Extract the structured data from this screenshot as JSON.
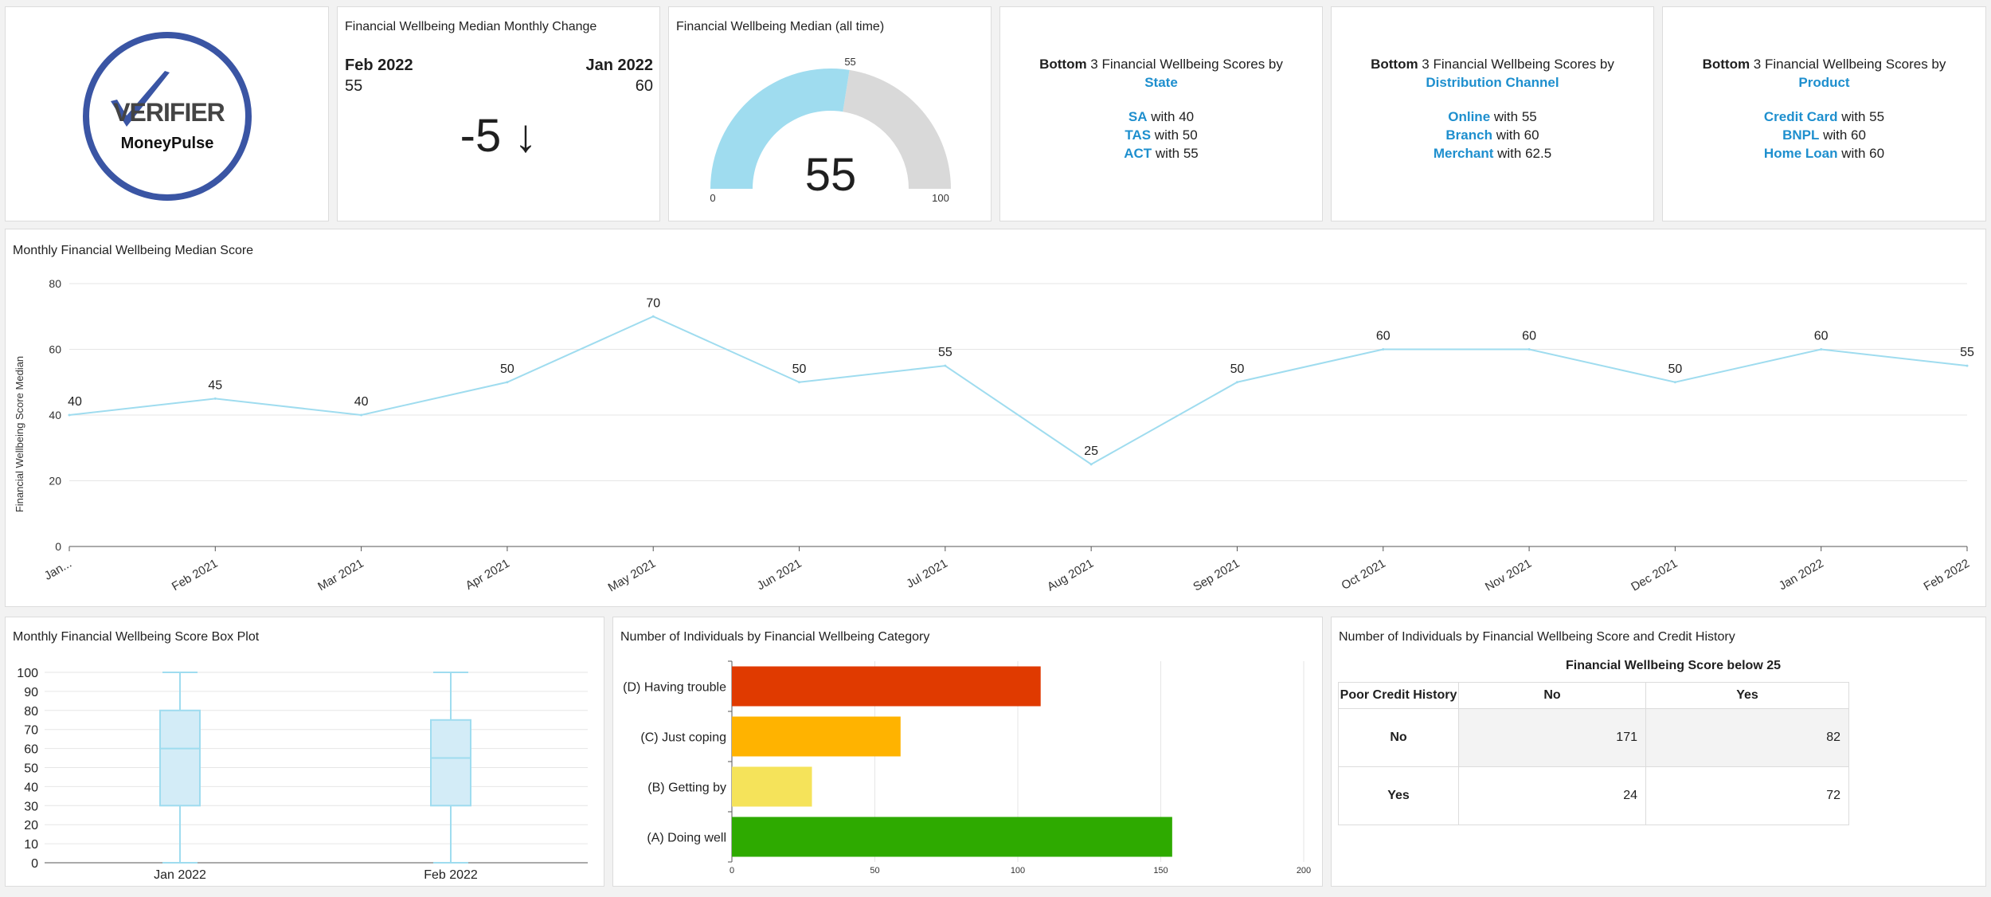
{
  "logo": {
    "brand_top": "VERIFIER",
    "brand_bottom": "MoneyPulse"
  },
  "kpi_change": {
    "title": "Financial Wellbeing Median Monthly Change",
    "current_label": "Feb 2022",
    "current_value": "55",
    "previous_label": "Jan 2022",
    "previous_value": "60",
    "delta_text": "-5 ↓"
  },
  "gauge": {
    "title": "Financial Wellbeing Median (all time)",
    "value": 55,
    "value_text": "55",
    "marker_text": "55",
    "min_text": "0",
    "max_text": "100",
    "min": 0,
    "max": 100,
    "fill_color": "#9fdcef",
    "rest_color": "#d9d9d9"
  },
  "bottom_state": {
    "prefix": "Bottom",
    "rest": " 3 Financial Wellbeing Scores by",
    "dimension": "State",
    "items": [
      {
        "name": "SA",
        "suffix": " with 40"
      },
      {
        "name": "TAS",
        "suffix": " with 50"
      },
      {
        "name": "ACT",
        "suffix": " with 55"
      }
    ]
  },
  "bottom_channel": {
    "prefix": "Bottom",
    "rest": " 3 Financial Wellbeing Scores by",
    "dimension": "Distribution Channel",
    "items": [
      {
        "name": "Online",
        "suffix": " with 55"
      },
      {
        "name": "Branch",
        "suffix": " with 60"
      },
      {
        "name": "Merchant",
        "suffix": " with 62.5"
      }
    ]
  },
  "bottom_product": {
    "prefix": "Bottom",
    "rest": " 3 Financial Wellbeing Scores by",
    "dimension": "Product",
    "items": [
      {
        "name": "Credit Card",
        "suffix": " with 55"
      },
      {
        "name": "BNPL",
        "suffix": " with 60"
      },
      {
        "name": "Home Loan",
        "suffix": " with 60"
      }
    ]
  },
  "colors": {
    "accent": "#1e8fce",
    "line": "#9fdcef",
    "box_fill": "#d3ecf7",
    "box_stroke": "#9fdcef"
  },
  "line_chart": {
    "title": "Monthly Financial Wellbeing Median Score",
    "ylabel": "Financial Wellbeing Score Median"
  },
  "box_chart": {
    "title": "Monthly Financial Wellbeing Score Box Plot"
  },
  "bar_chart": {
    "title": "Number of Individuals by Financial Wellbeing Category"
  },
  "crosstab": {
    "title": "Number of Individuals by Financial Wellbeing Score and Credit History",
    "col_header": "Financial Wellbeing Score below 25",
    "row_header": "Poor Credit History",
    "col_labels": [
      "No",
      "Yes"
    ],
    "rows": [
      {
        "label": "No",
        "values": [
          "171",
          "82"
        ]
      },
      {
        "label": "Yes",
        "values": [
          "24",
          "72"
        ]
      }
    ]
  },
  "chart_data": [
    {
      "type": "line",
      "title": "Monthly Financial Wellbeing Median Score",
      "ylabel": "Financial Wellbeing Score Median",
      "categories": [
        "Jan...",
        "Feb 2021",
        "Mar 2021",
        "Apr 2021",
        "May 2021",
        "Jun 2021",
        "Jul 2021",
        "Aug 2021",
        "Sep 2021",
        "Oct 2021",
        "Nov 2021",
        "Dec 2021",
        "Jan 2022",
        "Feb 2022"
      ],
      "values": [
        40,
        45,
        40,
        50,
        70,
        50,
        55,
        25,
        50,
        60,
        60,
        50,
        60,
        55
      ],
      "ylim": [
        0,
        80
      ],
      "yticks": [
        0,
        20,
        40,
        60,
        80
      ],
      "grid": true
    },
    {
      "type": "box",
      "title": "Monthly Financial Wellbeing Score Box Plot",
      "categories": [
        "Jan 2022",
        "Feb 2022"
      ],
      "boxes": [
        {
          "min": 0,
          "q1": 30,
          "median": 60,
          "q3": 80,
          "max": 100
        },
        {
          "min": 0,
          "q1": 30,
          "median": 55,
          "q3": 75,
          "max": 100
        }
      ],
      "ylim": [
        0,
        100
      ],
      "yticks": [
        0,
        10,
        20,
        30,
        40,
        50,
        60,
        70,
        80,
        90,
        100
      ],
      "grid": true
    },
    {
      "type": "bar",
      "orientation": "horizontal",
      "title": "Number of Individuals by Financial Wellbeing Category",
      "categories": [
        "(D) Having trouble",
        "(C) Just coping",
        "(B) Getting by",
        "(A) Doing well"
      ],
      "values": [
        108,
        59,
        28,
        154
      ],
      "colors": [
        "#e03a00",
        "#ffb300",
        "#f5e35a",
        "#2eaa00"
      ],
      "xlim": [
        0,
        200
      ],
      "xticks": [
        0,
        50,
        100,
        150,
        200
      ],
      "grid": true
    },
    {
      "type": "table",
      "title": "Number of Individuals by Financial Wellbeing Score and Credit History",
      "columns": [
        "No",
        "Yes"
      ],
      "rows": [
        {
          "label": "No",
          "values": [
            171,
            82
          ]
        },
        {
          "label": "Yes",
          "values": [
            24,
            72
          ]
        }
      ]
    }
  ]
}
